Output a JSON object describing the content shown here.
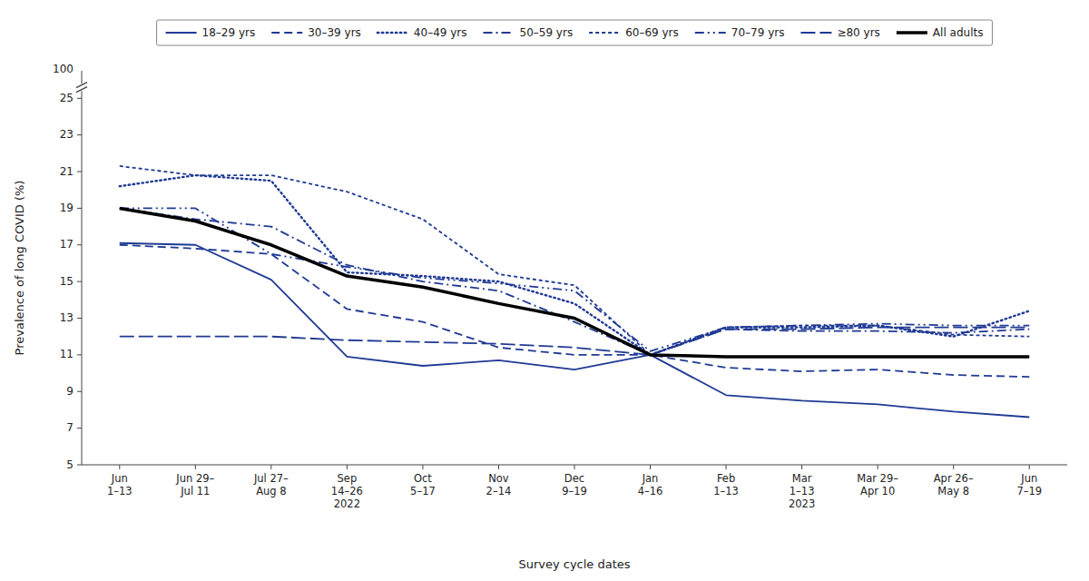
{
  "chart_data": {
    "type": "line",
    "categories": [
      "Jun\n1–13",
      "Jun 29–\nJul 11",
      "Jul 27–\nAug 8",
      "Sep\n14–26\n2022",
      "Oct\n5–17",
      "Nov\n2–14",
      "Dec\n9–19",
      "Jan\n4–16",
      "Feb\n1–13",
      "Mar\n1–13\n2023",
      "Mar 29–\nApr 10",
      "Apr 26–\nMay 8",
      "Jun\n7–19"
    ],
    "series": [
      {
        "name": "18–29 yrs",
        "color": "#1f3a93",
        "line_style": "solid",
        "values": [
          17.1,
          17.0,
          15.1,
          10.9,
          10.4,
          10.7,
          10.2,
          11.0,
          8.8,
          8.5,
          8.3,
          7.9,
          7.6
        ]
      },
      {
        "name": "30–39 yrs",
        "color": "#1f3a93",
        "line_style": "dashed",
        "values": [
          17.0,
          16.8,
          16.5,
          13.5,
          12.8,
          11.4,
          11.0,
          11.0,
          10.3,
          10.1,
          10.2,
          9.9,
          9.8
        ]
      },
      {
        "name": "40–49 yrs",
        "color": "#1f3a93",
        "line_style": "dotted",
        "values": [
          20.2,
          20.8,
          20.5,
          15.5,
          15.3,
          15.0,
          13.8,
          11.0,
          12.5,
          12.5,
          12.6,
          12.0,
          13.4
        ]
      },
      {
        "name": "50–59 yrs",
        "color": "#1f3a93",
        "line_style": "dashdot",
        "values": [
          19.0,
          18.4,
          18.0,
          15.9,
          15.0,
          14.5,
          12.8,
          11.0,
          12.4,
          12.3,
          12.3,
          12.2,
          12.4
        ]
      },
      {
        "name": "60–69 yrs",
        "color": "#1f3a93",
        "line_style": "short-dashed",
        "values": [
          21.3,
          20.8,
          20.8,
          19.9,
          18.4,
          15.4,
          14.8,
          11.0,
          12.5,
          12.6,
          12.6,
          12.1,
          12.0
        ]
      },
      {
        "name": "70–79 yrs",
        "color": "#1f3a93",
        "line_style": "dashdotdot",
        "values": [
          19.0,
          19.0,
          16.5,
          15.8,
          15.2,
          14.9,
          14.5,
          11.2,
          12.5,
          12.6,
          12.7,
          12.6,
          12.6
        ]
      },
      {
        "name": "≥80 yrs",
        "color": "#1f3a93",
        "line_style": "long-dashed",
        "values": [
          12.0,
          12.0,
          12.0,
          11.8,
          11.7,
          11.6,
          11.4,
          11.0,
          12.4,
          12.4,
          12.5,
          12.5,
          12.5
        ]
      },
      {
        "name": "All adults",
        "color": "#000000",
        "line_style": "thick",
        "values": [
          19.0,
          18.3,
          17.0,
          15.3,
          14.7,
          13.8,
          13.0,
          11.0,
          10.9,
          10.9,
          10.9,
          10.9,
          10.9
        ]
      }
    ],
    "ylim": [
      5,
      26.5
    ],
    "yticks": [
      5,
      7,
      9,
      11,
      13,
      15,
      17,
      19,
      21,
      23,
      25
    ],
    "ylabel": "Prevalence of long COVID (%)",
    "xlabel": "Survey cycle dates",
    "annotations": [
      {
        "text": "100"
      }
    ],
    "legend": "top",
    "grid": false
  }
}
